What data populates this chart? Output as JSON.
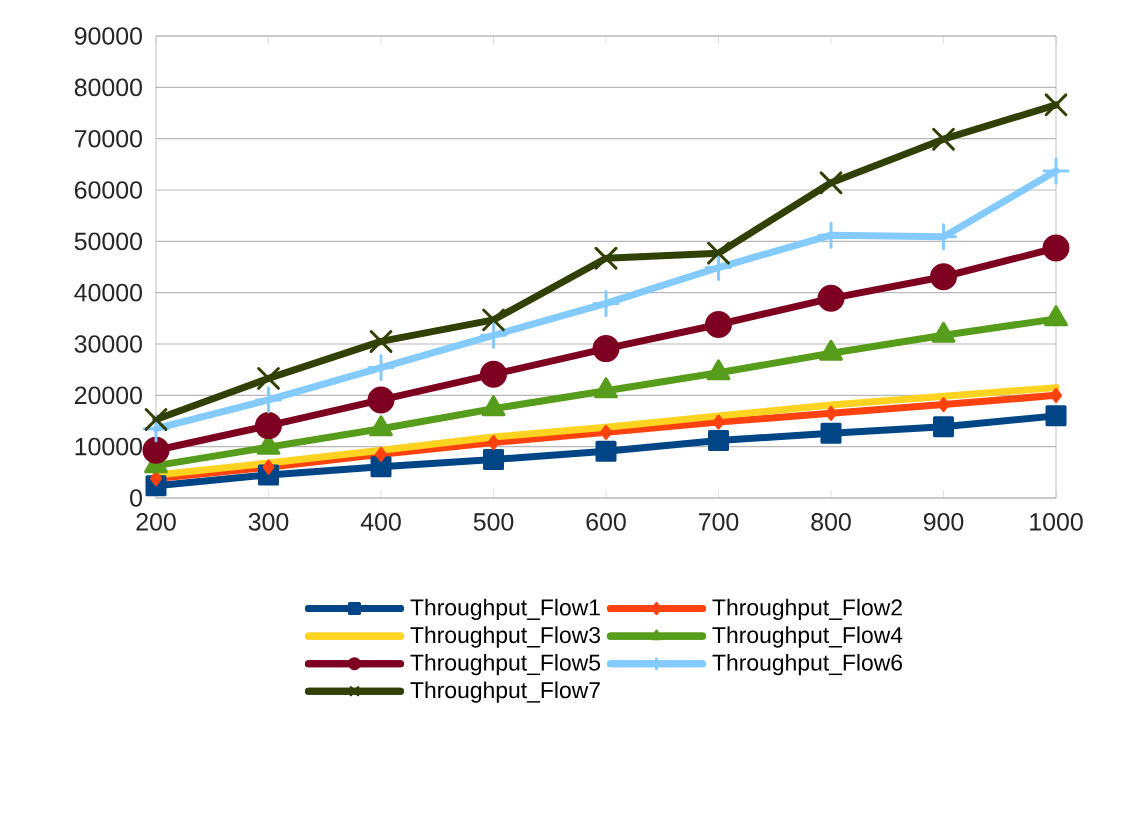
{
  "chart_data": {
    "type": "line",
    "x": [
      200,
      300,
      400,
      500,
      600,
      700,
      800,
      900,
      1000
    ],
    "xlim": [
      200,
      1000
    ],
    "xticks": [
      200,
      300,
      400,
      500,
      600,
      700,
      800,
      900,
      1000
    ],
    "ylim": [
      0,
      90000
    ],
    "yticks": [
      0,
      10000,
      20000,
      30000,
      40000,
      50000,
      60000,
      70000,
      80000,
      90000
    ],
    "grid": "y",
    "legend": "bottom",
    "series": [
      {
        "name": "Throughput_Flow1",
        "color": "#004586",
        "marker": "square",
        "values": [
          2400,
          4500,
          6100,
          7500,
          9100,
          11200,
          12600,
          13900,
          16000
        ]
      },
      {
        "name": "Throughput_Flow2",
        "color": "#ff420e",
        "marker": "diamond",
        "values": [
          3800,
          6000,
          8500,
          10800,
          12800,
          14800,
          16500,
          18200,
          20000
        ]
      },
      {
        "name": "Throughput_Flow3",
        "color": "#ffd320",
        "marker": "none",
        "values": [
          4500,
          6800,
          9300,
          11900,
          13800,
          16000,
          18100,
          19800,
          21500
        ]
      },
      {
        "name": "Throughput_Flow4",
        "color": "#579d1c",
        "marker": "triangle",
        "values": [
          6300,
          9900,
          13500,
          17400,
          20900,
          24400,
          28200,
          31700,
          34900
        ]
      },
      {
        "name": "Throughput_Flow5",
        "color": "#7e0021",
        "marker": "circle",
        "values": [
          9300,
          14100,
          19100,
          24100,
          29100,
          33800,
          38900,
          43100,
          48700
        ]
      },
      {
        "name": "Throughput_Flow6",
        "color": "#83caff",
        "marker": "plus",
        "values": [
          13500,
          19100,
          25400,
          31700,
          37900,
          44900,
          51200,
          50900,
          63700
        ]
      },
      {
        "name": "Throughput_Flow7",
        "color": "#314004",
        "marker": "cross",
        "values": [
          15300,
          23300,
          30500,
          34700,
          46700,
          47700,
          61400,
          69900,
          76600
        ]
      }
    ]
  }
}
